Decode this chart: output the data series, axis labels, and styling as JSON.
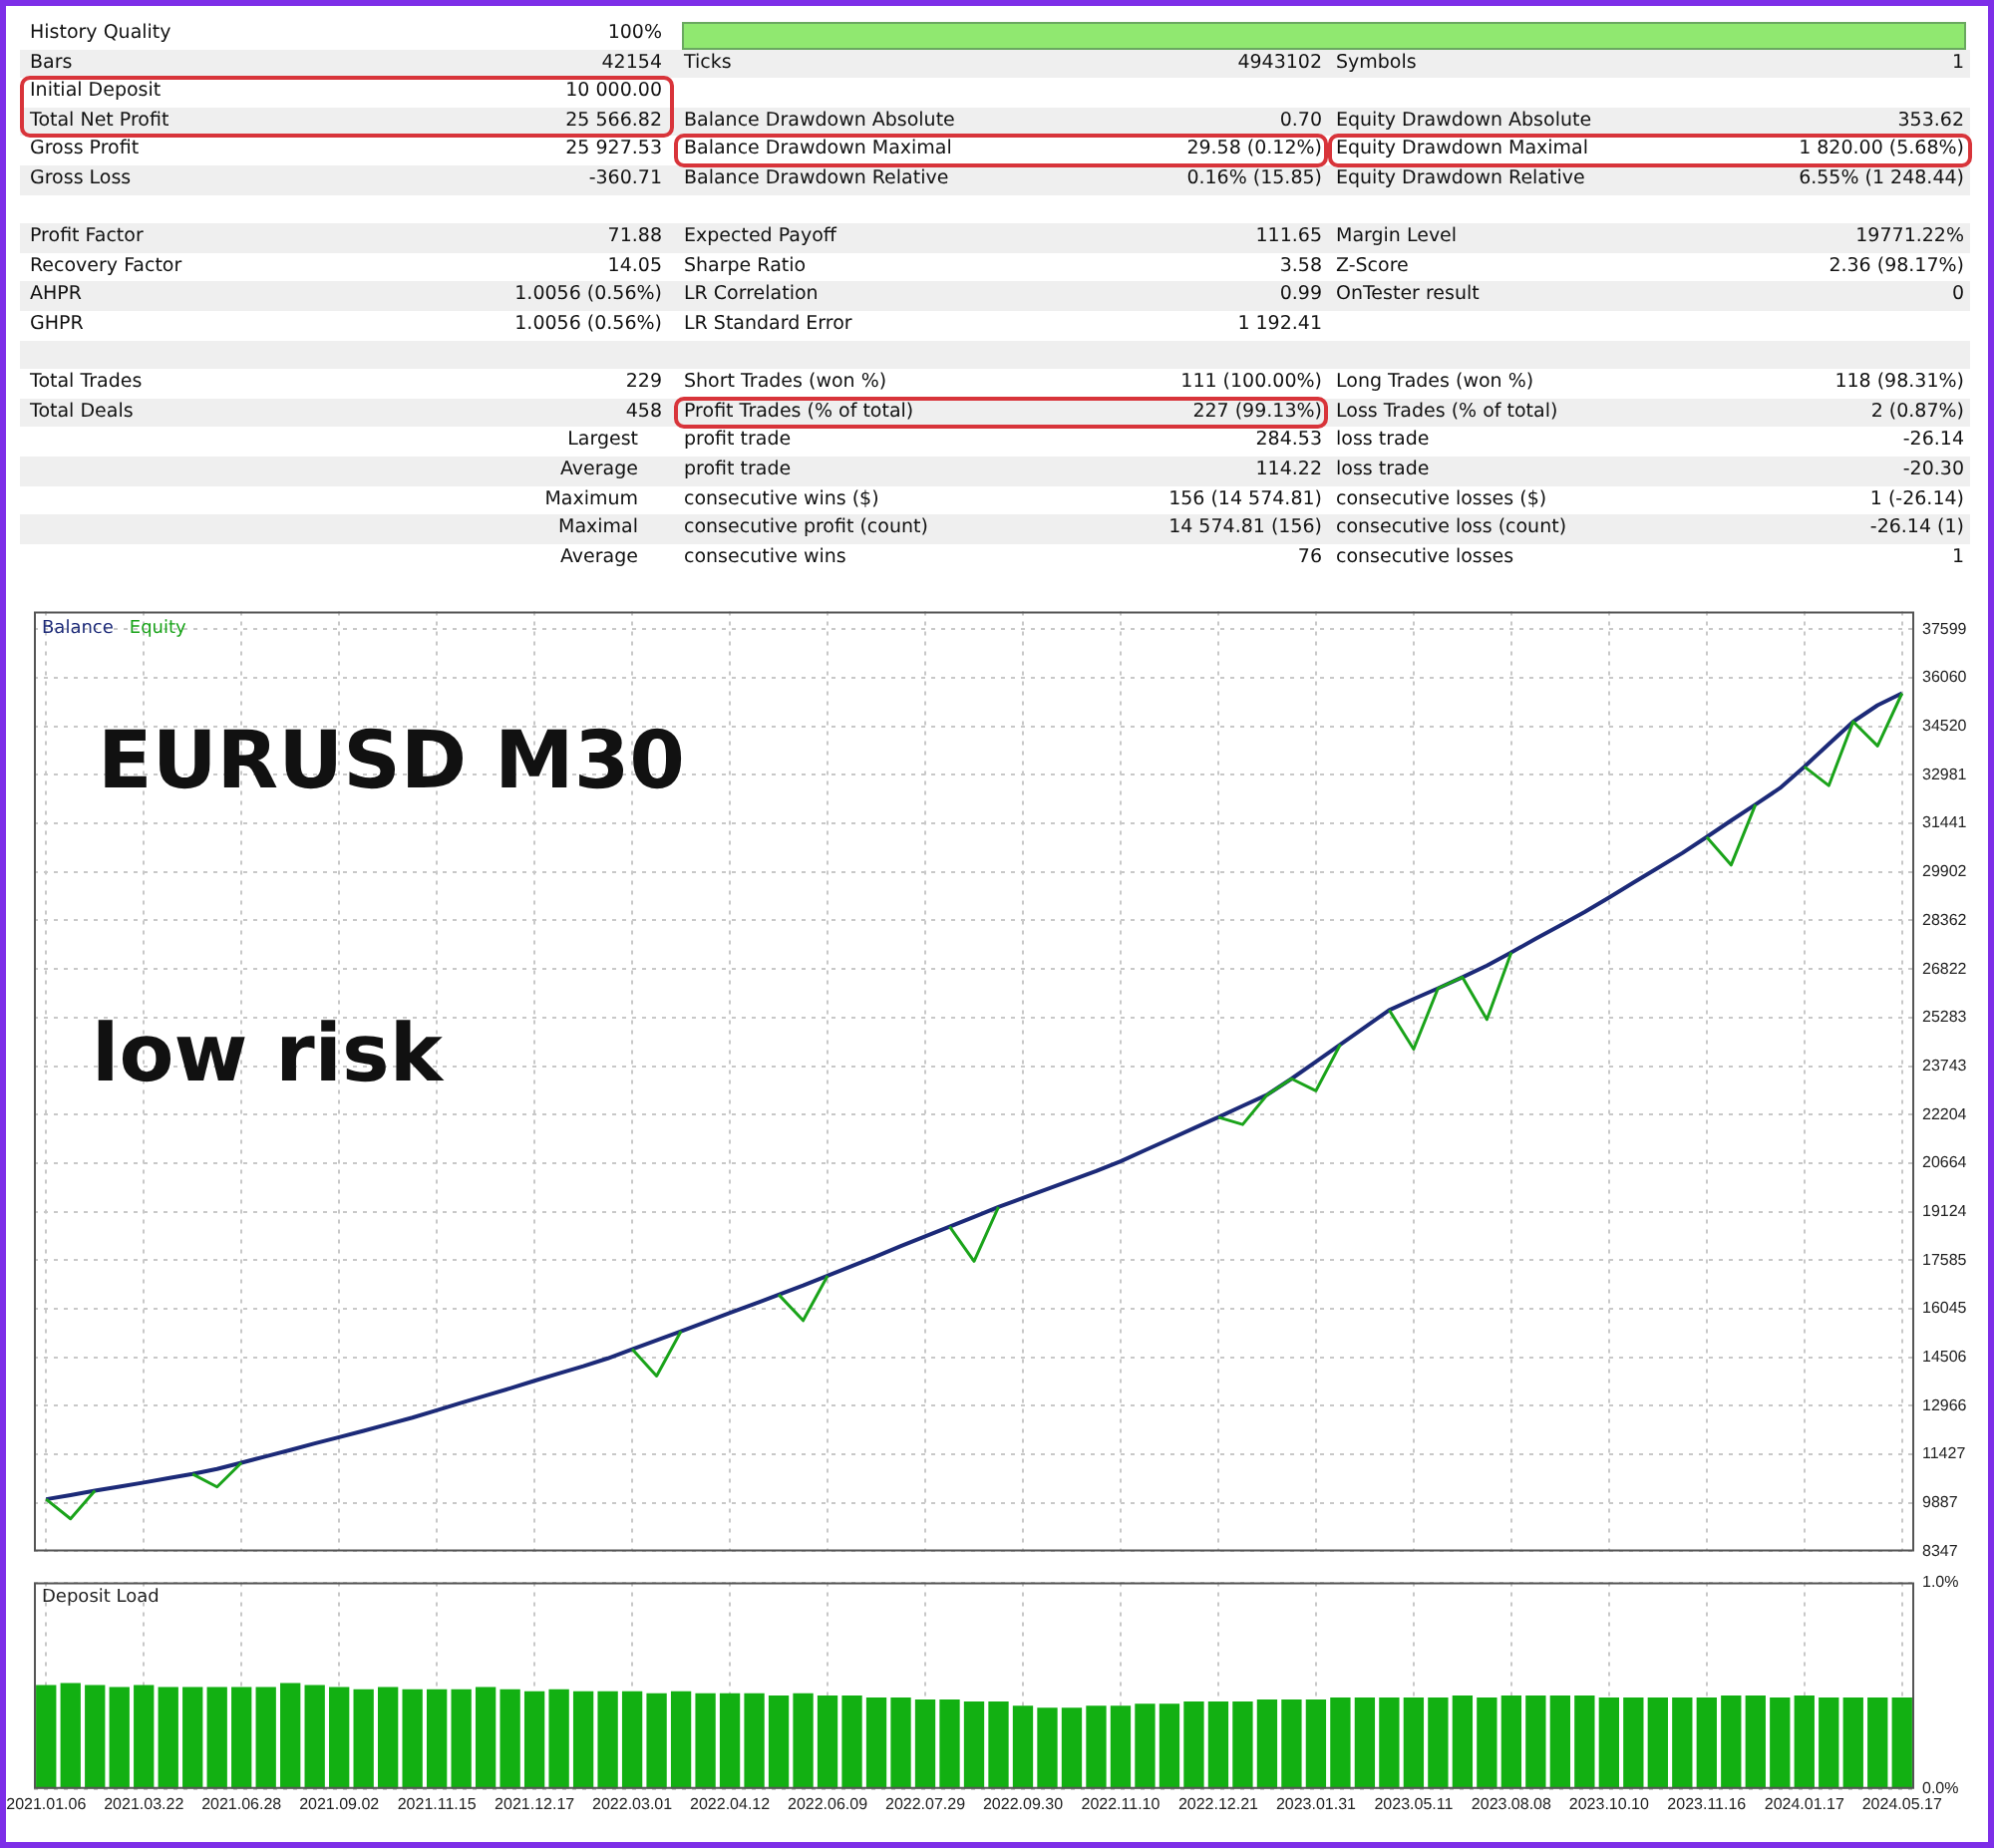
{
  "chart_data": [
    {
      "type": "other",
      "annotations": [
        "History Quality",
        "100%",
        "Bars",
        "42154",
        "Ticks",
        "4943102",
        "Symbols",
        "1",
        "Initial Deposit",
        "10 000.00",
        "Total Net Profit",
        "25 566.82",
        "Balance Drawdown Absolute",
        "0.70",
        "Equity Drawdown Absolute",
        "353.62",
        "Gross Profit",
        "25 927.53",
        "Balance Drawdown Maximal",
        "29.58 (0.12%)",
        "Equity Drawdown Maximal",
        "1 820.00 (5.68%)",
        "Gross Loss",
        "-360.71",
        "Balance Drawdown Relative",
        "0.16% (15.85)",
        "Equity Drawdown Relative",
        "6.55% (1 248.44)",
        "Profit Factor",
        "71.88",
        "Expected Payoff",
        "111.65",
        "Margin Level",
        "19771.22%",
        "Recovery Factor",
        "14.05",
        "Sharpe Ratio",
        "3.58",
        "Z-Score",
        "2.36 (98.17%)",
        "AHPR",
        "1.0056 (0.56%)",
        "LR Correlation",
        "0.99",
        "OnTester result",
        "0",
        "GHPR",
        "1.0056 (0.56%)",
        "LR Standard Error",
        "1 192.41",
        "Total Trades",
        "229",
        "Short Trades (won %)",
        "111 (100.00%)",
        "Long Trades (won %)",
        "118 (98.31%)",
        "Total Deals",
        "458",
        "Profit Trades (% of total)",
        "227 (99.13%)",
        "Loss Trades (% of total)",
        "2 (0.87%)",
        "Largest",
        "profit trade",
        "284.53",
        "loss trade",
        "-26.14",
        "Average",
        "profit trade",
        "114.22",
        "loss trade",
        "-20.30",
        "Maximum",
        "consecutive wins ($)",
        "156 (14 574.81)",
        "consecutive losses ($)",
        "1 (-26.14)",
        "Maximal",
        "consecutive profit (count)",
        "14 574.81 (156)",
        "consecutive loss (count)",
        "-26.14 (1)",
        "Average",
        "consecutive wins",
        "76",
        "consecutive losses",
        "1"
      ]
    },
    {
      "type": "line",
      "annotations": [
        "EURUSD M30",
        "low risk"
      ],
      "legend": "top left",
      "marker": "none",
      "line_style": "solid",
      "grid": true,
      "tick_labels": "y",
      "categories": [
        "2021.01.06",
        null,
        null,
        null,
        "2021.03.22",
        null,
        null,
        null,
        "2021.06.28",
        null,
        null,
        null,
        "2021.09.02",
        null,
        null,
        null,
        "2021.11.15",
        null,
        null,
        null,
        "2021.12.17",
        null,
        null,
        null,
        "2022.03.01",
        null,
        null,
        null,
        "2022.04.12",
        null,
        null,
        null,
        "2022.06.09",
        null,
        null,
        null,
        "2022.07.29",
        null,
        null,
        null,
        "2022.09.30",
        null,
        null,
        null,
        "2022.11.10",
        null,
        null,
        null,
        "2022.12.21",
        null,
        null,
        null,
        "2023.01.31",
        null,
        null,
        null,
        "2023.05.11",
        null,
        null,
        null,
        "2023.08.08",
        null,
        null,
        null,
        "2023.10.10",
        null,
        null,
        null,
        "2023.11.16",
        null,
        null,
        null,
        "2024.01.17",
        null,
        null,
        null,
        "2024.05.17"
      ],
      "ylim": [
        8347,
        38160
      ],
      "yticks": [
        8347,
        9887,
        11427,
        12966,
        14506,
        16045,
        17585,
        19124,
        20664,
        22204,
        23743,
        25283,
        26822,
        28362,
        29902,
        31441,
        32981,
        34520,
        36060,
        37599
      ],
      "series": [
        {
          "name": "Balance",
          "color": "#1c2a78",
          "values": [
            10000,
            10130,
            10270,
            10400,
            10530,
            10670,
            10800,
            10960,
            11160,
            11360,
            11560,
            11770,
            11970,
            12170,
            12380,
            12590,
            12820,
            13060,
            13290,
            13520,
            13760,
            13990,
            14220,
            14470,
            14760,
            15040,
            15330,
            15620,
            15910,
            16200,
            16490,
            16780,
            17090,
            17400,
            17710,
            18030,
            18340,
            18650,
            18960,
            19270,
            19560,
            19840,
            20130,
            20410,
            20720,
            21070,
            21420,
            21770,
            22120,
            22480,
            22830,
            23340,
            23880,
            24430,
            24970,
            25520,
            25870,
            26210,
            26560,
            26930,
            27350,
            27780,
            28200,
            28630,
            29090,
            29560,
            30030,
            30500,
            31010,
            31530,
            32040,
            32560,
            33240,
            33960,
            34670,
            35190,
            35570
          ]
        },
        {
          "name": "Equity",
          "color": "#1aa31a",
          "values": [
            10000,
            9380,
            10270,
            null,
            null,
            null,
            10800,
            10390,
            11160,
            null,
            null,
            null,
            null,
            null,
            null,
            null,
            null,
            null,
            null,
            null,
            null,
            null,
            null,
            null,
            14760,
            13910,
            15330,
            null,
            null,
            null,
            16490,
            15670,
            17090,
            null,
            null,
            null,
            null,
            18650,
            17550,
            19270,
            null,
            null,
            null,
            null,
            null,
            null,
            null,
            null,
            22120,
            21890,
            22830,
            23340,
            22960,
            24430,
            null,
            25520,
            24280,
            26210,
            26560,
            25220,
            27350,
            null,
            null,
            null,
            null,
            null,
            null,
            null,
            31010,
            30120,
            32040,
            null,
            33240,
            32640,
            34670,
            33900,
            35570
          ]
        }
      ]
    },
    {
      "type": "bar",
      "title": "Deposit Load",
      "color": "#12b012",
      "grid": true,
      "categories": [
        "2021.01.06",
        null,
        null,
        null,
        "2021.03.22",
        null,
        null,
        null,
        "2021.06.28",
        null,
        null,
        null,
        "2021.09.02",
        null,
        null,
        null,
        "2021.11.15",
        null,
        null,
        null,
        "2021.12.17",
        null,
        null,
        null,
        "2022.03.01",
        null,
        null,
        null,
        "2022.04.12",
        null,
        null,
        null,
        "2022.06.09",
        null,
        null,
        null,
        "2022.07.29",
        null,
        null,
        null,
        "2022.09.30",
        null,
        null,
        null,
        "2022.11.10",
        null,
        null,
        null,
        "2022.12.21",
        null,
        null,
        null,
        "2023.01.31",
        null,
        null,
        null,
        "2023.05.11",
        null,
        null,
        null,
        "2023.08.08",
        null,
        null,
        null,
        "2023.10.10",
        null,
        null,
        null,
        "2023.11.16",
        null,
        null,
        null,
        "2024.01.17",
        null,
        null,
        null,
        "2024.05.17"
      ],
      "ylim": [
        0,
        1
      ],
      "yticks": [
        {
          "value": 0,
          "label": "0.0%"
        },
        {
          "value": 1,
          "label": "1.0%"
        }
      ],
      "values": [
        0.5,
        0.51,
        0.5,
        0.49,
        0.5,
        0.49,
        0.49,
        0.49,
        0.49,
        0.49,
        0.51,
        0.5,
        0.49,
        0.48,
        0.49,
        0.48,
        0.48,
        0.48,
        0.49,
        0.48,
        0.47,
        0.48,
        0.47,
        0.47,
        0.47,
        0.46,
        0.47,
        0.46,
        0.46,
        0.46,
        0.45,
        0.46,
        0.45,
        0.45,
        0.44,
        0.44,
        0.43,
        0.43,
        0.42,
        0.42,
        0.4,
        0.39,
        0.39,
        0.4,
        0.4,
        0.41,
        0.41,
        0.42,
        0.42,
        0.42,
        0.43,
        0.43,
        0.43,
        0.44,
        0.44,
        0.44,
        0.44,
        0.44,
        0.45,
        0.44,
        0.45,
        0.45,
        0.45,
        0.45,
        0.44,
        0.44,
        0.44,
        0.44,
        0.44,
        0.45,
        0.45,
        0.44,
        0.45,
        0.44,
        0.44,
        0.44,
        0.44
      ]
    }
  ]
}
